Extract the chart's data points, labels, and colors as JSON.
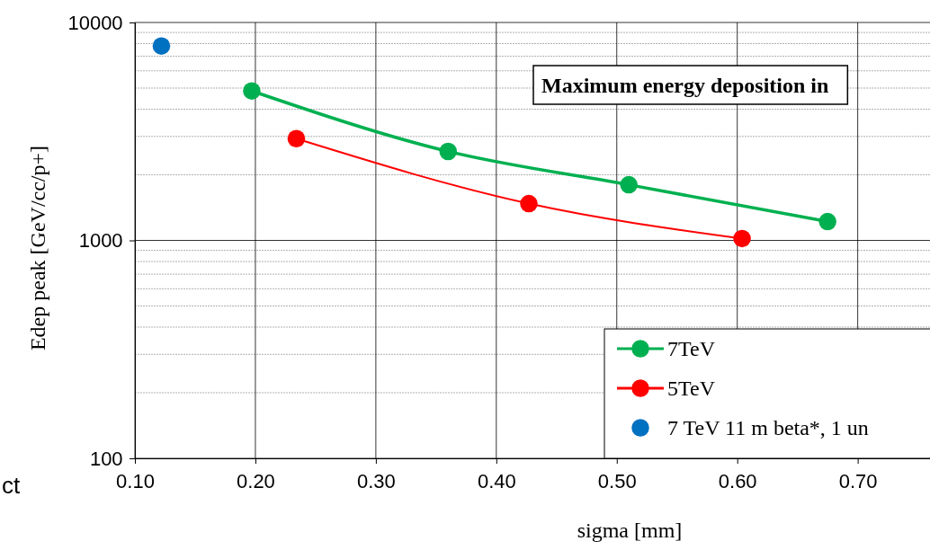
{
  "chart_data": {
    "type": "line",
    "xlabel": "sigma [mm]",
    "ylabel": "Edep peak [GeV/cc/p+]",
    "annotations": [
      "Maximum energy deposition in",
      "ct"
    ],
    "xlim": [
      0.1,
      0.76
    ],
    "xticks": [
      {
        "value": 0.1,
        "label": "0.10"
      },
      {
        "value": 0.2,
        "label": "0.20"
      },
      {
        "value": 0.3,
        "label": "0.30"
      },
      {
        "value": 0.4,
        "label": "0.40"
      },
      {
        "value": 0.5,
        "label": "0.50"
      },
      {
        "value": 0.6,
        "label": "0.60"
      },
      {
        "value": 0.7,
        "label": "0.70"
      }
    ],
    "ylim": [
      100,
      10000
    ],
    "yticks": [
      100,
      1000,
      10000
    ],
    "log": true,
    "grid": true,
    "legend": "bottom right",
    "marker": "circle",
    "series": [
      {
        "name": "7TeV",
        "color": "#00b050",
        "x": [
          0.197,
          0.36,
          0.51,
          0.675
        ],
        "values": [
          4850,
          2560,
          1800,
          1220
        ]
      },
      {
        "name": "5TeV",
        "color": "#ff0000",
        "x": [
          0.234,
          0.427,
          0.604
        ],
        "values": [
          2930,
          1475,
          1020
        ]
      },
      {
        "name": "7 TeV 11 m beta*, 1 un",
        "type": "scatter",
        "color": "#0070c0",
        "x": [
          0.122
        ],
        "values": [
          7800
        ]
      }
    ]
  }
}
